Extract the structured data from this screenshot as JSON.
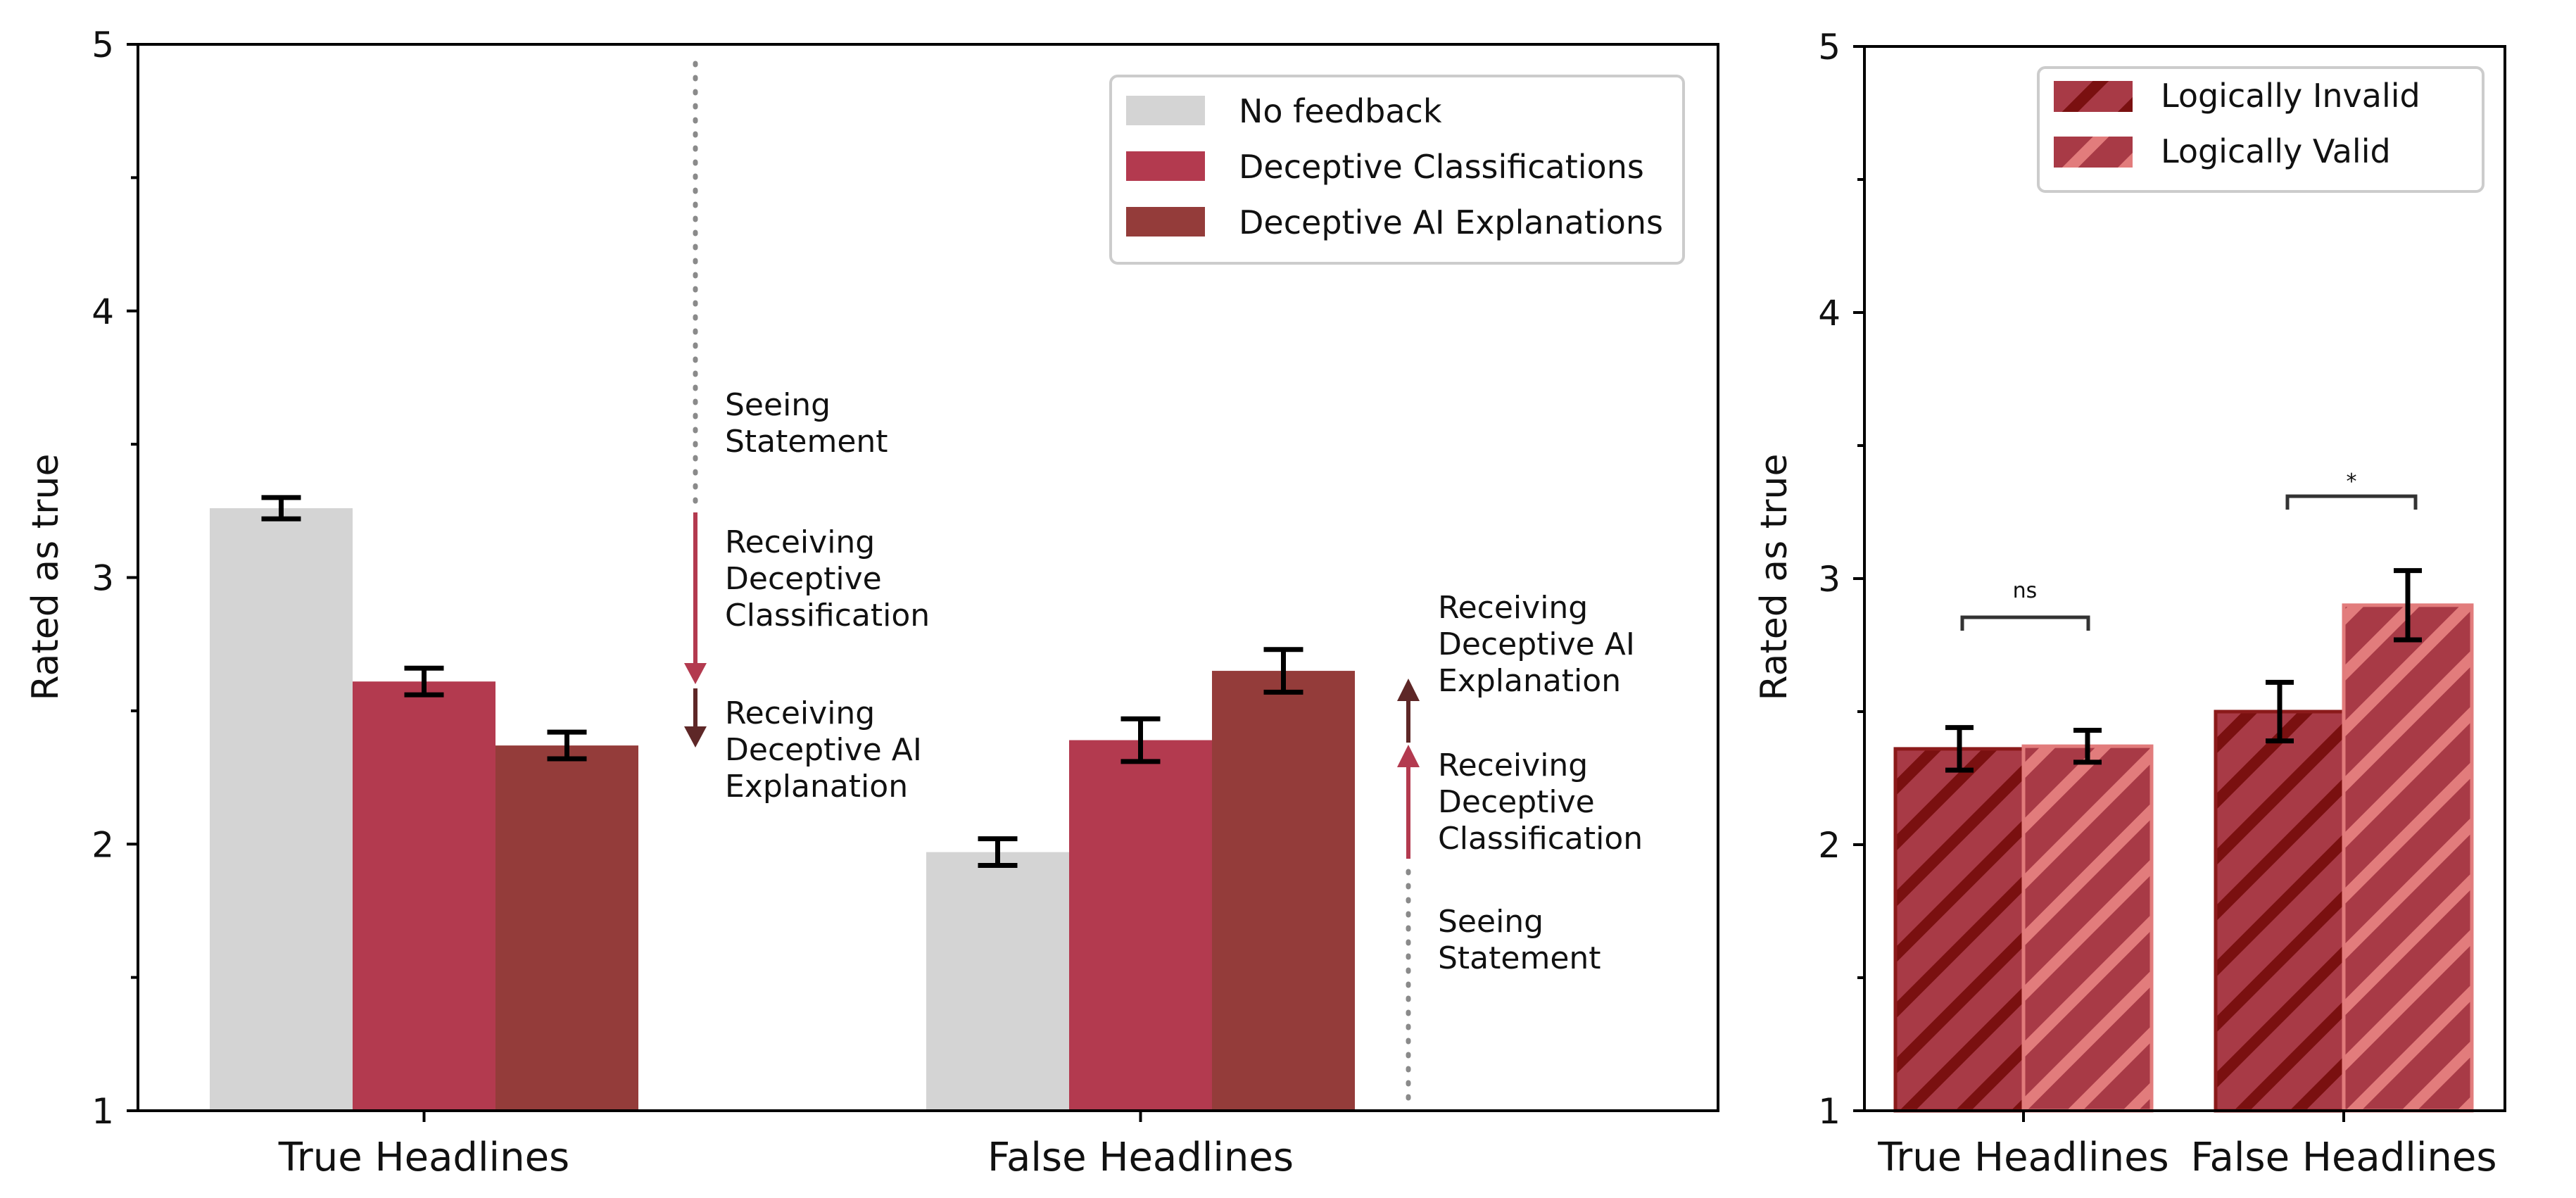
{
  "left_panel": {
    "ylabel": "Rated as true",
    "legend": {
      "items": [
        {
          "label": "No feedback",
          "color": "#d4d4d4"
        },
        {
          "label": "Deceptive Classifications",
          "color": "#b33a4f"
        },
        {
          "label": "Deceptive AI Explanations",
          "color": "#943c3a"
        }
      ]
    },
    "annotations": {
      "true_side": {
        "seeing": [
          "Seeing",
          "Statement"
        ],
        "classification": [
          "Receiving",
          "Deceptive",
          "Classification"
        ],
        "explanation": [
          "Receiving",
          "Deceptive AI",
          "Explanation"
        ]
      },
      "false_side": {
        "seeing": [
          "Seeing",
          "Statement"
        ],
        "classification": [
          "Receiving",
          "Deceptive",
          "Classification"
        ],
        "explanation": [
          "Receiving",
          "Deceptive AI",
          "Explanation"
        ]
      }
    }
  },
  "right_panel": {
    "ylabel": "Rated as true",
    "legend": {
      "items": [
        {
          "label": "Logically Invalid",
          "color": "#a83a46",
          "stripe": "#7a1010"
        },
        {
          "label": "Logically Valid",
          "color": "#a83a46",
          "stripe": "#e27c7c"
        }
      ]
    },
    "significance": [
      {
        "group": "True Headlines",
        "label": "ns"
      },
      {
        "group": "False Headlines",
        "label": "*"
      }
    ]
  },
  "chart_data": [
    {
      "type": "bar",
      "categories": [
        "True Headlines",
        "False Headlines"
      ],
      "series": [
        {
          "name": "No feedback",
          "values": [
            3.26,
            1.97
          ],
          "errors": [
            0.04,
            0.05
          ]
        },
        {
          "name": "Deceptive Classifications",
          "values": [
            2.61,
            2.39
          ],
          "errors": [
            0.05,
            0.08
          ]
        },
        {
          "name": "Deceptive AI Explanations",
          "values": [
            2.37,
            2.65
          ],
          "errors": [
            0.05,
            0.08
          ]
        }
      ],
      "xlabel": "",
      "ylabel": "Rated as true",
      "ylim": [
        1,
        5
      ],
      "yticks": [
        1,
        2,
        3,
        4,
        5
      ],
      "legend_position": "top-right",
      "grid": false
    },
    {
      "type": "bar",
      "categories": [
        "True Headlines",
        "False Headlines"
      ],
      "series": [
        {
          "name": "Logically Invalid",
          "values": [
            2.36,
            2.5
          ],
          "errors": [
            0.08,
            0.11
          ]
        },
        {
          "name": "Logically Valid",
          "values": [
            2.37,
            2.9
          ],
          "errors": [
            0.06,
            0.13
          ]
        }
      ],
      "xlabel": "",
      "ylabel": "Rated as true",
      "ylim": [
        1,
        5
      ],
      "yticks": [
        1,
        2,
        3,
        4,
        5
      ],
      "legend_position": "top-left",
      "grid": false
    }
  ]
}
